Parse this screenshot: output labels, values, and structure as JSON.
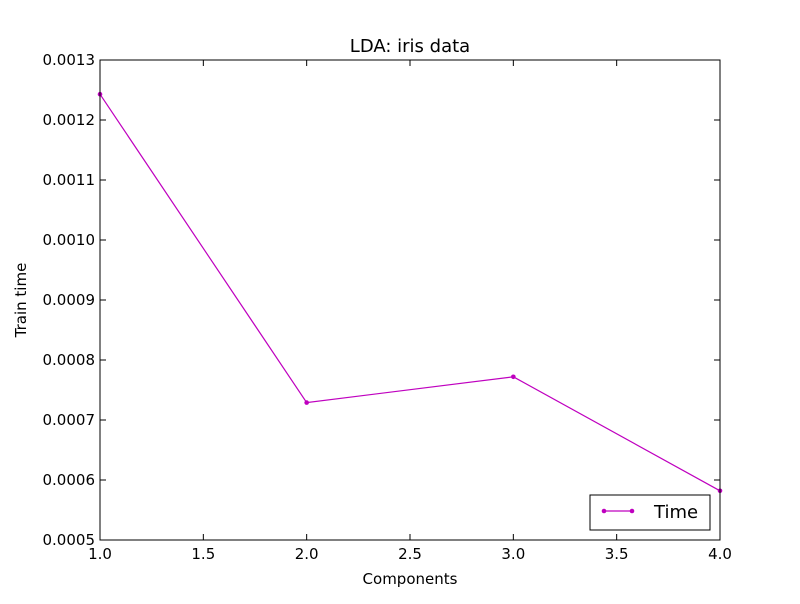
{
  "chart_data": {
    "type": "line",
    "title": "LDA: iris data",
    "xlabel": "Components",
    "ylabel": "Train time",
    "xlim": [
      1.0,
      4.0
    ],
    "ylim": [
      0.0005,
      0.0013
    ],
    "xticks": [
      "1.0",
      "1.5",
      "2.0",
      "2.5",
      "3.0",
      "3.5",
      "4.0"
    ],
    "yticks": [
      "0.0005",
      "0.0006",
      "0.0007",
      "0.0008",
      "0.0009",
      "0.0010",
      "0.0011",
      "0.0012",
      "0.0013"
    ],
    "grid": false,
    "legend_position": "lower-right",
    "series": [
      {
        "name": "Time",
        "color": "#bf00bf",
        "marker": "dot",
        "x": [
          1.0,
          2.0,
          3.0,
          4.0
        ],
        "y": [
          0.001243,
          0.000729,
          0.000772,
          0.000582
        ]
      }
    ]
  }
}
